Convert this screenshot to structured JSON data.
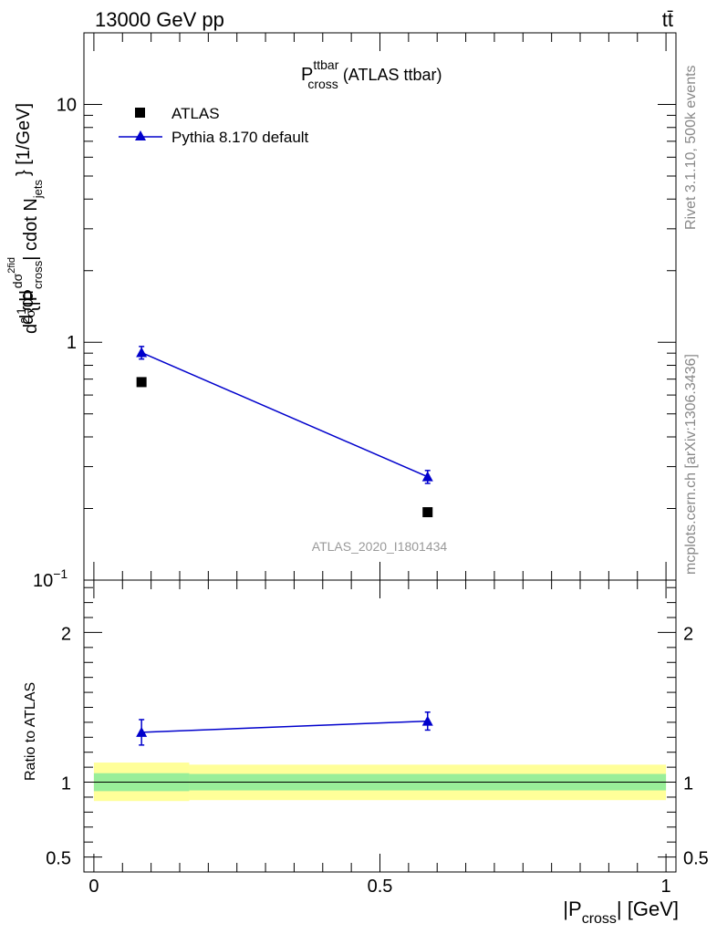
{
  "header": {
    "energy_label": "13000 GeV pp",
    "process_label": "tt̄"
  },
  "side_labels": {
    "rivet": "Rivet 3.1.10,  500k events",
    "mcplots": "mcplots.cern.ch [arXiv:1306.3436]"
  },
  "chart_data": [
    {
      "type": "scatter",
      "panel": "main",
      "title": {
        "main": "P",
        "superscript": "ttbar",
        "subscript": "cross",
        "suffix": " (ATLAS ttbar)"
      },
      "ylabel": {
        "p1": "d",
        "p2": "1",
        "p3": "d",
        "p4": "σ",
        "p5": "d",
        "p6": "d",
        "p7": "σ",
        "p7sup": "2",
        "p7sup2": "fid",
        "p8": "d",
        "p8sup": "2",
        "p9": " {|P",
        "p9sub": "cross",
        "p10": "| cdot N",
        "p10sub": "jets",
        "p11": "} [1/GeV]"
      },
      "yscale": "log",
      "ylim": [
        0.1,
        20
      ],
      "xlim": [
        -0.0174,
        1.0174
      ],
      "yticks": [
        {
          "value": 10,
          "label": "10"
        },
        {
          "value": 1,
          "label": "1"
        },
        {
          "value": 0.1,
          "label": "10",
          "sup": "−1"
        }
      ],
      "legend_position": "top-left",
      "watermark": "ATLAS_2020_I1801434",
      "series": [
        {
          "name": "ATLAS",
          "marker": "square",
          "color": "#000000",
          "x": [
            0.0833,
            0.5833
          ],
          "y": [
            0.68,
            0.193
          ]
        },
        {
          "name": "Pythia 8.170 default",
          "marker": "triangle",
          "color": "#0000cc",
          "line": true,
          "x": [
            0.0833,
            0.5833
          ],
          "y": [
            0.905,
            0.272
          ],
          "yerr": [
            0.055,
            0.017
          ]
        }
      ]
    },
    {
      "type": "line",
      "panel": "ratio",
      "ylabel": "Ratio to ATLAS",
      "xlabel": {
        "pre": "|P",
        "sub": "cross",
        "post": "| [GeV]"
      },
      "ylim": [
        0.4,
        2.35
      ],
      "xlim": [
        -0.0174,
        1.0174
      ],
      "xticks": [
        {
          "value": 0,
          "label": "0"
        },
        {
          "value": 0.5,
          "label": "0.5"
        },
        {
          "value": 1,
          "label": "1"
        }
      ],
      "yticks": [
        {
          "value": 2,
          "label": "2"
        },
        {
          "value": 1,
          "label": "1"
        },
        {
          "value": 0.5,
          "label": "0.5"
        }
      ],
      "bands": [
        {
          "x0": 0,
          "x1": 0.1667,
          "yellow": [
            0.874,
            1.131
          ],
          "green": [
            0.94,
            1.06
          ]
        },
        {
          "x0": 0.1667,
          "x1": 1,
          "yellow": [
            0.88,
            1.117
          ],
          "green": [
            0.945,
            1.055
          ]
        }
      ],
      "series": [
        {
          "name": "Pythia 8.170 default",
          "color": "#0000cc",
          "x": [
            0.0833,
            0.5833
          ],
          "y": [
            1.333,
            1.408
          ],
          "yerr": [
            0.085,
            0.06
          ]
        }
      ]
    }
  ]
}
